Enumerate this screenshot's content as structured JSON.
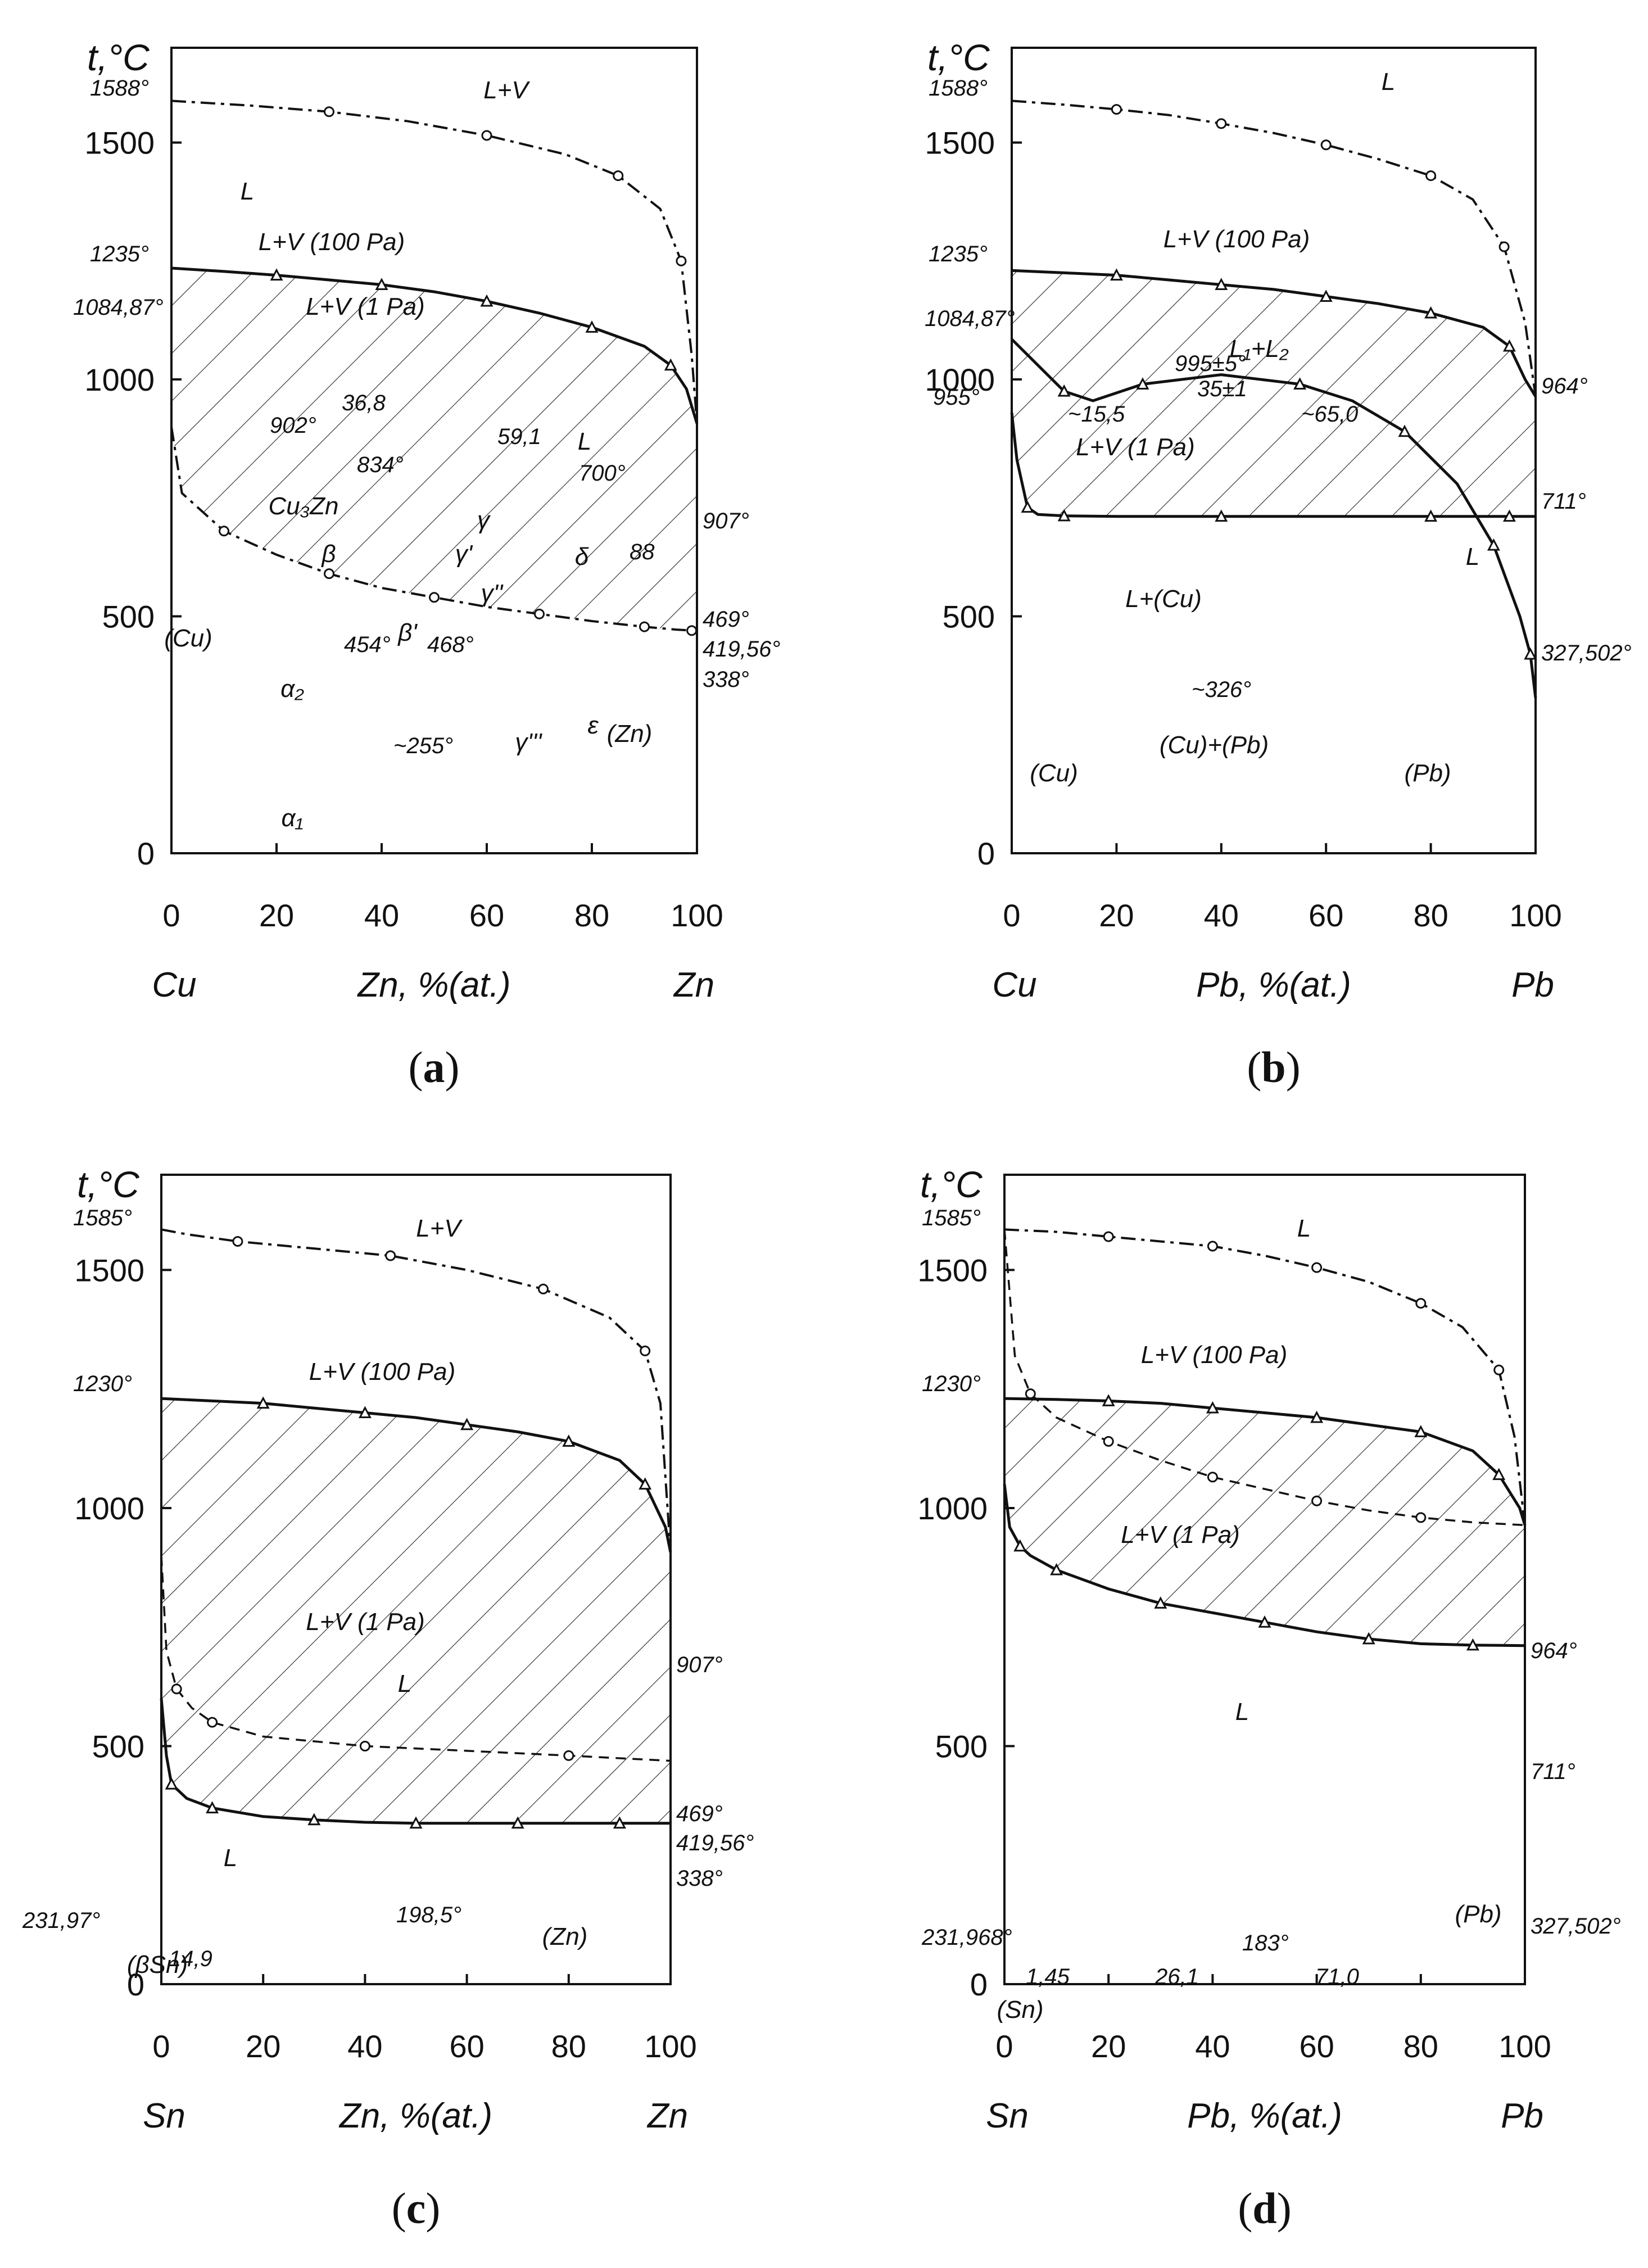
{
  "panels": [
    {
      "caption": "a",
      "chart_data": {
        "type": "line",
        "title": "t,°C",
        "xlabel": "Zn, %(at.)",
        "ylabel": "t,°C",
        "xlim": [
          0,
          100
        ],
        "ylim": [
          0,
          1700
        ],
        "x_ticks": [
          "0",
          "20",
          "40",
          "60",
          "80",
          "100"
        ],
        "y_ticks": [
          "0",
          "500",
          "1000",
          "1500"
        ],
        "x_left_element": "Cu",
        "x_right_element": "Zn",
        "series": [
          {
            "name": "L+V (1 Pa)",
            "style": "dash-dot",
            "x": [
              0,
              2,
              10,
              20,
              30,
              40,
              50,
              60,
              70,
              80,
              90,
              96,
              99,
              100
            ],
            "y": [
              900,
              760,
              680,
              630,
              590,
              560,
              540,
              520,
              505,
              490,
              478,
              472,
              470,
              469
            ]
          },
          {
            "name": "L+V (100 Pa)",
            "style": "solid",
            "x": [
              0,
              10,
              20,
              30,
              40,
              50,
              60,
              70,
              80,
              90,
              95,
              98,
              100
            ],
            "y": [
              1235,
              1228,
              1220,
              1210,
              1200,
              1185,
              1165,
              1140,
              1110,
              1070,
              1030,
              980,
              907
            ]
          },
          {
            "name": "L+V",
            "style": "dash-dot",
            "x": [
              0,
              15,
              30,
              45,
              60,
              75,
              85,
              93,
              97,
              99,
              100
            ],
            "y": [
              1588,
              1578,
              1565,
              1545,
              1515,
              1475,
              1430,
              1360,
              1250,
              1050,
              907
            ]
          }
        ],
        "annotations": [
          "1588°",
          "1235°",
          "1084,87°",
          "902°",
          "36,8",
          "59,1",
          "834°",
          "700°",
          "907°",
          "88",
          "469°",
          "419,56°",
          "338°",
          "454°",
          "468°",
          "~255°"
        ],
        "regions": [
          "L+V",
          "L",
          "L+V (100 Pa)",
          "L+V (1 Pa)",
          "L",
          "Cu₃Zn",
          "β",
          "γ",
          "γ'",
          "γ''",
          "γ'''",
          "δ",
          "ε",
          "β'",
          "(Cu)",
          "(Zn)",
          "α₂",
          "α₁"
        ]
      }
    },
    {
      "caption": "b",
      "chart_data": {
        "type": "line",
        "title": "t,°C",
        "xlabel": "Pb, %(at.)",
        "ylabel": "t,°C",
        "xlim": [
          0,
          100
        ],
        "ylim": [
          0,
          1700
        ],
        "x_ticks": [
          "0",
          "20",
          "40",
          "60",
          "80",
          "100"
        ],
        "y_ticks": [
          "0",
          "500",
          "1000",
          "1500"
        ],
        "x_left_element": "Cu",
        "x_right_element": "Pb",
        "series": [
          {
            "name": "L+V (1 Pa)",
            "style": "solid",
            "x": [
              0,
              1,
              3,
              5,
              10,
              20,
              40,
              60,
              80,
              90,
              95,
              99,
              100
            ],
            "y": [
              930,
              830,
              730,
              715,
              712,
              711,
              711,
              711,
              711,
              711,
              711,
              711,
              711
            ]
          },
          {
            "name": "L+V (100 Pa)",
            "style": "solid",
            "x": [
              0,
              10,
              20,
              30,
              40,
              50,
              60,
              70,
              80,
              90,
              95,
              98,
              100
            ],
            "y": [
              1230,
              1225,
              1220,
              1210,
              1200,
              1190,
              1175,
              1160,
              1140,
              1110,
              1070,
              1000,
              964
            ]
          },
          {
            "name": "L",
            "style": "dash-dot",
            "x": [
              0,
              10,
              20,
              30,
              40,
              50,
              60,
              70,
              80,
              88,
              94,
              98,
              100
            ],
            "y": [
              1588,
              1580,
              1570,
              1558,
              1540,
              1520,
              1495,
              1465,
              1430,
              1380,
              1280,
              1120,
              964
            ]
          },
          {
            "name": "liquidus",
            "style": "solid",
            "x": [
              0,
              5,
              10,
              15.5,
              25,
              40,
              55,
              65,
              75,
              85,
              92,
              97,
              99,
              100
            ],
            "y": [
              1084.87,
              1030,
              975,
              955,
              990,
              1010,
              990,
              955,
              890,
              780,
              650,
              500,
              420,
              327.502
            ]
          }
        ],
        "annotations": [
          "1588°",
          "1235°",
          "1084,87°",
          "995±5°",
          "35±1",
          "955°",
          "~15,5",
          "~65,0",
          "964°",
          "711°",
          "327,502°",
          "~326°"
        ],
        "regions": [
          "L",
          "L+V (100 Pa)",
          "L₁+L₂",
          "L+V (1 Pa)",
          "L",
          "L+(Cu)",
          "(Cu)+(Pb)",
          "(Cu)",
          "(Pb)"
        ]
      }
    },
    {
      "caption": "c",
      "chart_data": {
        "type": "line",
        "title": "t,°C",
        "xlabel": "Zn, %(at.)",
        "ylabel": "t,°C",
        "xlim": [
          0,
          100
        ],
        "ylim": [
          0,
          1700
        ],
        "x_ticks": [
          "0",
          "20",
          "40",
          "60",
          "80",
          "100"
        ],
        "y_ticks": [
          "0",
          "500",
          "1000",
          "1500"
        ],
        "x_left_element": "Sn",
        "x_right_element": "Zn",
        "series": [
          {
            "name": "L+V (1 Pa)",
            "style": "solid",
            "x": [
              0,
              1,
              2,
              5,
              10,
              20,
              30,
              40,
              50,
              60,
              70,
              80,
              90,
              100
            ],
            "y": [
              600,
              480,
              420,
              390,
              370,
              352,
              345,
              340,
              338,
              338,
              338,
              338,
              338,
              338
            ]
          },
          {
            "name": "L+V (100 Pa)",
            "style": "solid",
            "x": [
              0,
              10,
              20,
              30,
              40,
              50,
              60,
              70,
              80,
              90,
              95,
              99,
              100
            ],
            "y": [
              1230,
              1225,
              1220,
              1210,
              1200,
              1190,
              1175,
              1160,
              1140,
              1100,
              1050,
              960,
              907
            ]
          },
          {
            "name": "L+V",
            "style": "dash-dot",
            "x": [
              0,
              5,
              15,
              30,
              45,
              60,
              75,
              88,
              95,
              98,
              100
            ],
            "y": [
              1585,
              1575,
              1560,
              1545,
              1530,
              1500,
              1460,
              1400,
              1330,
              1220,
              907
            ]
          },
          {
            "name": "469 line",
            "style": "dash",
            "x": [
              0,
              1,
              3,
              6,
              10,
              20,
              40,
              60,
              80,
              100
            ],
            "y": [
              900,
              700,
              620,
              580,
              550,
              520,
              500,
              490,
              480,
              469
            ]
          }
        ],
        "annotations": [
          "1585°",
          "1230°",
          "907°",
          "469°",
          "419,56°",
          "338°",
          "231,97°",
          "198,5°",
          "14,9"
        ],
        "regions": [
          "L+V",
          "L+V (100 Pa)",
          "L+V (1 Pa)",
          "L",
          "L",
          "(βSn)",
          "(Zn)"
        ]
      }
    },
    {
      "caption": "d",
      "chart_data": {
        "type": "line",
        "title": "t,°C",
        "xlabel": "Pb, %(at.)",
        "ylabel": "t,°C",
        "xlim": [
          0,
          100
        ],
        "ylim": [
          0,
          1700
        ],
        "x_ticks": [
          "0",
          "20",
          "40",
          "60",
          "80",
          "100"
        ],
        "y_ticks": [
          "0",
          "500",
          "1000",
          "1500"
        ],
        "x_left_element": "Sn",
        "x_right_element": "Pb",
        "series": [
          {
            "name": "L+V (1 Pa)",
            "style": "solid",
            "x": [
              0,
              1,
              3,
              5,
              10,
              20,
              30,
              40,
              50,
              60,
              70,
              80,
              90,
              100
            ],
            "y": [
              1050,
              960,
              920,
              900,
              870,
              830,
              800,
              780,
              760,
              740,
              725,
              715,
              712,
              711
            ]
          },
          {
            "name": "L+V (100 Pa)",
            "style": "solid",
            "x": [
              0,
              10,
              20,
              30,
              40,
              50,
              60,
              70,
              80,
              90,
              95,
              99,
              100
            ],
            "y": [
              1230,
              1228,
              1225,
              1220,
              1210,
              1200,
              1190,
              1175,
              1160,
              1120,
              1070,
              1000,
              964
            ]
          },
          {
            "name": "L",
            "style": "dash-dot",
            "x": [
              0,
              10,
              20,
              30,
              40,
              50,
              60,
              70,
              80,
              88,
              95,
              98,
              100
            ],
            "y": [
              1585,
              1580,
              1570,
              1560,
              1550,
              1530,
              1505,
              1475,
              1430,
              1380,
              1290,
              1150,
              964
            ]
          },
          {
            "name": "964 line",
            "style": "dash",
            "x": [
              0,
              2,
              5,
              10,
              20,
              30,
              40,
              50,
              60,
              70,
              80,
              90,
              100
            ],
            "y": [
              1585,
              1320,
              1240,
              1190,
              1140,
              1100,
              1065,
              1040,
              1015,
              995,
              980,
              970,
              964
            ]
          }
        ],
        "annotations": [
          "1585°",
          "1230°",
          "964°",
          "711°",
          "327,502°",
          "231,968°",
          "183°",
          "1,45",
          "26,1",
          "71,0"
        ],
        "regions": [
          "L",
          "L+V (100 Pa)",
          "L+V (1 Pa)",
          "L",
          "(Pb)",
          "(Sn)"
        ]
      }
    }
  ]
}
